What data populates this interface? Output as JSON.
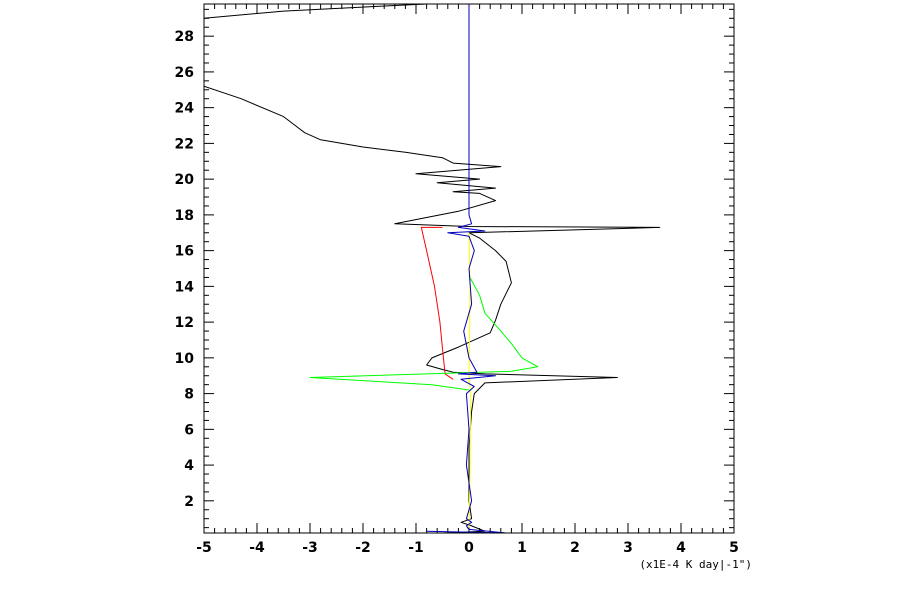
{
  "chart_data": {
    "type": "line",
    "title": "",
    "xlabel": "(x1E-4 K day|-1\")",
    "ylabel": "",
    "xlim": [
      -5,
      5
    ],
    "ylim": [
      0.2,
      29.8
    ],
    "x_ticks": [
      -5,
      -4,
      -3,
      -2,
      -1,
      0,
      1,
      2,
      3,
      4,
      5
    ],
    "y_ticks": [
      2,
      4,
      6,
      8,
      10,
      12,
      14,
      16,
      18,
      20,
      22,
      24,
      26,
      28
    ],
    "grid": false,
    "legend": "none",
    "series": [
      {
        "color": "#000000",
        "points": [
          [
            -0.5,
            0.2
          ],
          [
            0.3,
            0.3
          ],
          [
            0.05,
            0.6
          ],
          [
            -0.15,
            0.8
          ],
          [
            0.05,
            1.0
          ],
          [
            0.0,
            2.0
          ],
          [
            0.0,
            5.0
          ],
          [
            0.05,
            7.0
          ],
          [
            0.1,
            8.0
          ],
          [
            0.3,
            8.6
          ],
          [
            2.8,
            8.9
          ],
          [
            0.3,
            9.1
          ],
          [
            -0.3,
            9.2
          ],
          [
            -0.5,
            9.35
          ],
          [
            -0.8,
            9.6
          ],
          [
            -0.7,
            10.0
          ],
          [
            -0.2,
            10.6
          ],
          [
            0.4,
            11.4
          ],
          [
            0.5,
            12.1
          ],
          [
            0.6,
            13.0
          ],
          [
            0.8,
            14.2
          ],
          [
            0.7,
            15.4
          ],
          [
            0.5,
            16.0
          ],
          [
            0.2,
            16.7
          ],
          [
            0.0,
            17.0
          ],
          [
            3.6,
            17.3
          ],
          [
            0.0,
            17.35
          ],
          [
            -1.4,
            17.5
          ],
          [
            -0.2,
            18.2
          ],
          [
            0.5,
            18.8
          ],
          [
            0.2,
            19.2
          ],
          [
            -0.3,
            19.3
          ],
          [
            0.5,
            19.5
          ],
          [
            -0.6,
            19.8
          ],
          [
            0.2,
            20.0
          ],
          [
            -1.0,
            20.3
          ],
          [
            0.6,
            20.7
          ],
          [
            -0.3,
            20.9
          ],
          [
            -0.5,
            21.2
          ],
          [
            -1.2,
            21.5
          ],
          [
            -2.0,
            21.8
          ],
          [
            -2.8,
            22.2
          ],
          [
            -3.1,
            22.6
          ],
          [
            -3.5,
            23.5
          ],
          [
            -4.3,
            24.5
          ],
          [
            -5.0,
            25.2
          ],
          [
            null,
            null
          ],
          [
            -5.0,
            29.0
          ],
          [
            -3.5,
            29.4
          ],
          [
            -1.5,
            29.7
          ],
          [
            -0.8,
            29.8
          ]
        ]
      },
      {
        "color": "#ff0000",
        "points": [
          [
            -0.3,
            8.8
          ],
          [
            -0.45,
            9.1
          ],
          [
            -0.5,
            10.5
          ],
          [
            -0.55,
            12.0
          ],
          [
            -0.65,
            14.0
          ],
          [
            -0.8,
            16.0
          ],
          [
            -0.9,
            17.3
          ],
          [
            -0.5,
            17.3
          ]
        ]
      },
      {
        "color": "#00ff00",
        "points": [
          [
            0.0,
            8.2
          ],
          [
            -0.7,
            8.5
          ],
          [
            -3.0,
            8.9
          ],
          [
            -0.8,
            9.1
          ],
          [
            0.8,
            9.25
          ],
          [
            1.3,
            9.5
          ],
          [
            1.0,
            10.0
          ],
          [
            0.8,
            10.8
          ],
          [
            0.6,
            11.5
          ],
          [
            0.3,
            12.5
          ],
          [
            0.2,
            13.5
          ],
          [
            0.0,
            14.6
          ]
        ]
      },
      {
        "color": "#ffff00",
        "points": [
          [
            0.0,
            0.5
          ],
          [
            0.02,
            4.0
          ],
          [
            0.03,
            8.0
          ],
          [
            0.0,
            9.0
          ],
          [
            0.02,
            14.0
          ],
          [
            0.0,
            17.0
          ]
        ]
      },
      {
        "color": "#0000bb",
        "points": [
          [
            -0.8,
            0.3
          ],
          [
            0.7,
            0.2
          ],
          [
            0.0,
            0.4
          ],
          [
            -0.05,
            0.6
          ],
          [
            0.05,
            0.8
          ],
          [
            -0.05,
            1.0
          ],
          [
            0.05,
            2.0
          ],
          [
            -0.05,
            4.0
          ],
          [
            0.0,
            6.0
          ],
          [
            -0.05,
            8.0
          ],
          [
            0.1,
            8.4
          ],
          [
            -0.15,
            8.8
          ],
          [
            0.5,
            9.0
          ],
          [
            -0.2,
            9.1
          ],
          [
            0.15,
            9.2
          ],
          [
            0.0,
            10.0
          ],
          [
            -0.1,
            11.5
          ],
          [
            0.05,
            13.0
          ],
          [
            0.0,
            15.0
          ],
          [
            0.1,
            16.0
          ],
          [
            0.0,
            16.8
          ],
          [
            -0.4,
            17.0
          ],
          [
            0.3,
            17.1
          ],
          [
            -0.2,
            17.3
          ],
          [
            0.05,
            17.5
          ],
          [
            0.0,
            18.0
          ],
          [
            0.0,
            29.8
          ]
        ]
      }
    ]
  }
}
